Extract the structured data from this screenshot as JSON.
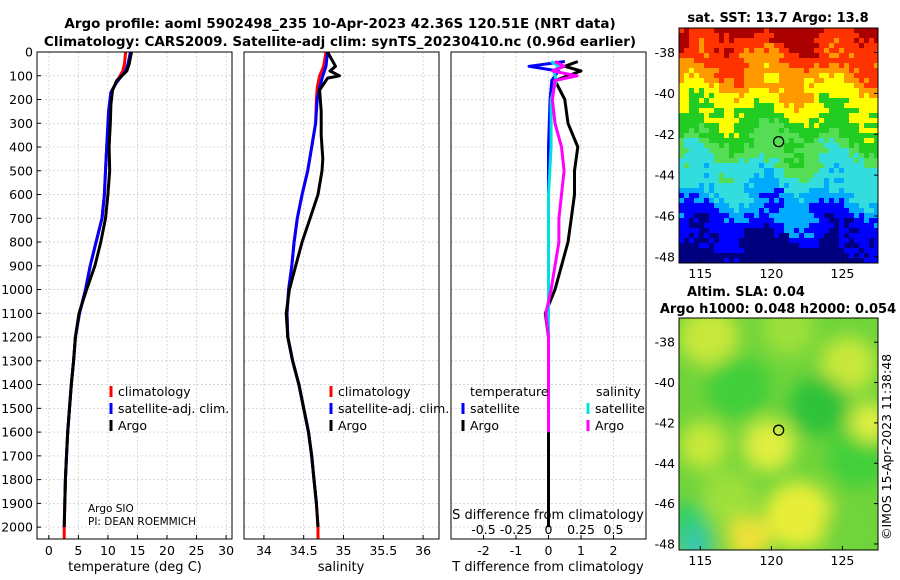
{
  "title": {
    "line1": "Argo profile: aoml 5902498_235 10-Apr-2023 42.36S 120.51E (NRT data)",
    "line2": "Climatology: CARS2009. Satellite-adj clim: synTS_20230410.nc (0.96d earlier)"
  },
  "depth_axis": {
    "ticks": [
      0,
      100,
      200,
      300,
      400,
      500,
      600,
      700,
      800,
      900,
      1000,
      1100,
      1200,
      1300,
      1400,
      1500,
      1600,
      1700,
      1800,
      1900,
      2000
    ],
    "ylim": [
      0,
      2050
    ]
  },
  "chart_data": [
    {
      "type": "line",
      "id": "temperature",
      "xlabel": "temperature (deg C)",
      "xlim": [
        -2,
        31
      ],
      "xticks": [
        0,
        5,
        10,
        15,
        20,
        25,
        30
      ],
      "legend": {
        "items": [
          "climatology",
          "satellite-adj. clim.",
          "Argo"
        ],
        "placement": "lower-left"
      },
      "annotations": [
        "Argo SIO",
        "PI: DEAN ROEMMICH"
      ],
      "series": [
        {
          "name": "climatology",
          "color": "#ff0000",
          "points": [
            [
              13.0,
              0
            ],
            [
              12.8,
              50
            ],
            [
              12.5,
              80
            ],
            [
              11.4,
              130
            ],
            [
              10.5,
              170
            ],
            [
              10.2,
              250
            ],
            [
              9.8,
              400
            ],
            [
              9.6,
              500
            ],
            [
              9.4,
              600
            ],
            [
              9.0,
              700
            ],
            [
              8.0,
              800
            ],
            [
              7.0,
              900
            ],
            [
              6.2,
              1000
            ],
            [
              5.2,
              1100
            ],
            [
              4.5,
              1200
            ],
            [
              4.2,
              1300
            ],
            [
              3.8,
              1400
            ],
            [
              3.5,
              1500
            ],
            [
              3.2,
              1600
            ],
            [
              3.0,
              1700
            ],
            [
              2.8,
              1800
            ],
            [
              2.7,
              1900
            ],
            [
              2.6,
              2000
            ],
            [
              2.6,
              2050
            ]
          ]
        },
        {
          "name": "satellite-adj. clim.",
          "color": "#0000ff",
          "points": [
            [
              13.8,
              0
            ],
            [
              13.4,
              50
            ],
            [
              13.0,
              80
            ],
            [
              11.4,
              130
            ],
            [
              10.5,
              170
            ],
            [
              10.1,
              250
            ],
            [
              9.8,
              400
            ],
            [
              9.6,
              500
            ],
            [
              9.4,
              600
            ],
            [
              9.0,
              700
            ],
            [
              8.0,
              800
            ],
            [
              7.0,
              900
            ],
            [
              6.2,
              1000
            ],
            [
              5.2,
              1100
            ],
            [
              4.5,
              1200
            ],
            [
              4.2,
              1300
            ],
            [
              3.8,
              1400
            ],
            [
              3.5,
              1500
            ],
            [
              3.2,
              1600
            ],
            [
              3.0,
              1700
            ],
            [
              2.8,
              1800
            ],
            [
              2.7,
              1900
            ]
          ]
        },
        {
          "name": "Argo",
          "color": "#000000",
          "points": [
            [
              14.0,
              0
            ],
            [
              13.6,
              50
            ],
            [
              13.2,
              80
            ],
            [
              11.5,
              120
            ],
            [
              10.8,
              160
            ],
            [
              10.5,
              220
            ],
            [
              10.4,
              300
            ],
            [
              10.2,
              400
            ],
            [
              10.3,
              500
            ],
            [
              10.0,
              600
            ],
            [
              9.6,
              700
            ],
            [
              8.8,
              800
            ],
            [
              7.8,
              900
            ],
            [
              6.4,
              1000
            ],
            [
              5.1,
              1100
            ],
            [
              4.5,
              1200
            ],
            [
              4.2,
              1300
            ],
            [
              3.8,
              1400
            ],
            [
              3.5,
              1500
            ],
            [
              3.2,
              1600
            ],
            [
              3.0,
              1700
            ],
            [
              2.8,
              1800
            ],
            [
              2.7,
              1900
            ],
            [
              2.6,
              2000
            ]
          ]
        }
      ]
    },
    {
      "type": "line",
      "id": "salinity",
      "xlabel": "salinity",
      "xlim": [
        33.75,
        36.2
      ],
      "xticks": [
        34,
        34.5,
        35,
        35.5,
        36
      ],
      "xtick_labels": [
        "34",
        "34.5",
        "35",
        "35.5",
        "36"
      ],
      "legend": {
        "items": [
          "climatology",
          "satellite-adj. clim.",
          "Argo"
        ],
        "placement": "lower-right"
      },
      "series": [
        {
          "name": "climatology",
          "color": "#ff0000",
          "points": [
            [
              34.78,
              0
            ],
            [
              34.75,
              60
            ],
            [
              34.7,
              100
            ],
            [
              34.67,
              150
            ],
            [
              34.66,
              200
            ],
            [
              34.65,
              300
            ],
            [
              34.6,
              400
            ],
            [
              34.55,
              500
            ],
            [
              34.48,
              600
            ],
            [
              34.42,
              700
            ],
            [
              34.38,
              800
            ],
            [
              34.35,
              900
            ],
            [
              34.31,
              1000
            ],
            [
              34.29,
              1100
            ],
            [
              34.3,
              1200
            ],
            [
              34.36,
              1300
            ],
            [
              34.44,
              1400
            ],
            [
              34.5,
              1500
            ],
            [
              34.56,
              1600
            ],
            [
              34.6,
              1700
            ],
            [
              34.63,
              1800
            ],
            [
              34.66,
              1900
            ],
            [
              34.68,
              2000
            ],
            [
              34.68,
              2050
            ]
          ]
        },
        {
          "name": "satellite-adj. clim.",
          "color": "#0000ff",
          "points": [
            [
              34.8,
              0
            ],
            [
              34.78,
              60
            ],
            [
              34.74,
              100
            ],
            [
              34.7,
              150
            ],
            [
              34.67,
              200
            ],
            [
              34.65,
              300
            ],
            [
              34.6,
              400
            ],
            [
              34.55,
              500
            ],
            [
              34.48,
              600
            ],
            [
              34.42,
              700
            ],
            [
              34.38,
              800
            ],
            [
              34.35,
              900
            ],
            [
              34.31,
              1000
            ],
            [
              34.29,
              1100
            ],
            [
              34.3,
              1200
            ],
            [
              34.36,
              1300
            ],
            [
              34.44,
              1400
            ],
            [
              34.5,
              1500
            ],
            [
              34.56,
              1600
            ],
            [
              34.6,
              1700
            ],
            [
              34.63,
              1800
            ],
            [
              34.66,
              1900
            ]
          ]
        },
        {
          "name": "Argo",
          "color": "#000000",
          "points": [
            [
              34.8,
              0
            ],
            [
              34.9,
              60
            ],
            [
              34.83,
              80
            ],
            [
              34.95,
              100
            ],
            [
              34.8,
              110
            ],
            [
              34.7,
              160
            ],
            [
              34.72,
              250
            ],
            [
              34.72,
              350
            ],
            [
              34.74,
              450
            ],
            [
              34.73,
              500
            ],
            [
              34.68,
              600
            ],
            [
              34.58,
              700
            ],
            [
              34.48,
              800
            ],
            [
              34.4,
              900
            ],
            [
              34.32,
              1000
            ],
            [
              34.28,
              1100
            ],
            [
              34.3,
              1200
            ],
            [
              34.36,
              1300
            ],
            [
              34.44,
              1400
            ],
            [
              34.5,
              1500
            ],
            [
              34.56,
              1600
            ],
            [
              34.6,
              1700
            ],
            [
              34.63,
              1800
            ],
            [
              34.66,
              1900
            ],
            [
              34.68,
              2000
            ]
          ]
        }
      ]
    },
    {
      "type": "line",
      "id": "difference",
      "xlabel": "T difference from climatology",
      "xlabel2": "S difference from climatology",
      "xlim": [
        -3,
        3
      ],
      "xticks": [
        -2,
        -1,
        0,
        1,
        2
      ],
      "s_ticks": [
        -0.5,
        -0.25,
        0,
        0.25,
        0.5
      ],
      "s_tick_labels": [
        "-0.5",
        "-0.25",
        "0",
        "0.25",
        "0.5"
      ],
      "legend_temperature": {
        "header": "temperature",
        "items": [
          "satellite",
          "Argo"
        ],
        "placement": "lower-left"
      },
      "legend_salinity": {
        "header": "salinity",
        "items": [
          "satellite",
          "Argo"
        ],
        "placement": "lower-right"
      },
      "series": [
        {
          "name": "temperature satellite",
          "color": "#0000ff",
          "points": [
            [
              0.5,
              40
            ],
            [
              -0.6,
              60
            ],
            [
              0.3,
              80
            ],
            [
              0.1,
              120
            ],
            [
              0.05,
              200
            ],
            [
              0.0,
              400
            ],
            [
              0.0,
              800
            ],
            [
              0.0,
              1200
            ],
            [
              0.0,
              1600
            ],
            [
              0.0,
              2000
            ]
          ]
        },
        {
          "name": "temperature Argo",
          "color": "#000000",
          "points": [
            [
              0.9,
              40
            ],
            [
              0.5,
              60
            ],
            [
              1.0,
              80
            ],
            [
              0.2,
              120
            ],
            [
              0.5,
              200
            ],
            [
              0.6,
              300
            ],
            [
              0.9,
              400
            ],
            [
              0.8,
              500
            ],
            [
              0.8,
              600
            ],
            [
              0.7,
              700
            ],
            [
              0.6,
              800
            ],
            [
              0.4,
              900
            ],
            [
              0.2,
              1000
            ],
            [
              -0.1,
              1100
            ],
            [
              0.0,
              1200
            ],
            [
              0.0,
              1400
            ],
            [
              0.0,
              1600
            ],
            [
              0.0,
              1800
            ],
            [
              0.0,
              2000
            ]
          ]
        },
        {
          "name": "salinity satellite",
          "color": "#00e0e0",
          "points": [
            [
              0.02,
              40
            ],
            [
              0.08,
              60
            ],
            [
              0.04,
              80
            ],
            [
              0.06,
              120
            ],
            [
              0.02,
              200
            ],
            [
              0.02,
              400
            ],
            [
              0.0,
              600
            ],
            [
              0.0,
              800
            ],
            [
              0.0,
              1000
            ],
            [
              0.0,
              1200
            ],
            [
              0.0,
              1400
            ],
            [
              0.0,
              1600
            ]
          ]
        },
        {
          "name": "salinity Argo",
          "color": "#ff00ff",
          "points": [
            [
              0.05,
              40
            ],
            [
              0.12,
              60
            ],
            [
              0.03,
              80
            ],
            [
              0.22,
              100
            ],
            [
              0.05,
              120
            ],
            [
              0.03,
              200
            ],
            [
              0.05,
              300
            ],
            [
              0.1,
              400
            ],
            [
              0.12,
              500
            ],
            [
              0.1,
              600
            ],
            [
              0.08,
              700
            ],
            [
              0.08,
              800
            ],
            [
              0.05,
              900
            ],
            [
              0.02,
              1000
            ],
            [
              -0.02,
              1100
            ],
            [
              0.0,
              1200
            ],
            [
              0.0,
              1400
            ],
            [
              0.0,
              1600
            ]
          ]
        }
      ]
    },
    {
      "type": "heatmap",
      "id": "sst_map",
      "title": "sat. SST: 13.7 Argo: 13.8",
      "x_range": [
        113.5,
        127.5
      ],
      "y_range": [
        -48.3,
        -36.8
      ],
      "xticks": [
        115,
        120,
        125
      ],
      "yticks": [
        -38,
        -40,
        -42,
        -44,
        -46,
        -48
      ],
      "marker": {
        "lon": 120.51,
        "lat": -42.36
      },
      "colors": [
        "#00007f",
        "#0000ff",
        "#00aaff",
        "#33dddd",
        "#55dd55",
        "#22cc22",
        "#ffff00",
        "#ff9900",
        "#ff3300",
        "#aa0000"
      ]
    },
    {
      "type": "heatmap",
      "id": "sla_map",
      "title1": "Altim. SLA: 0.04",
      "title2": "Argo h1000: 0.048 h2000: 0.054",
      "x_range": [
        113.5,
        127.5
      ],
      "y_range": [
        -48.3,
        -36.8
      ],
      "xticks": [
        115,
        120,
        125
      ],
      "yticks": [
        -38,
        -40,
        -42,
        -44,
        -46,
        -48
      ],
      "marker": {
        "lon": 120.51,
        "lat": -42.36
      }
    }
  ],
  "footer_credit": "©IMOS 15-Apr-2023 11:38:48"
}
